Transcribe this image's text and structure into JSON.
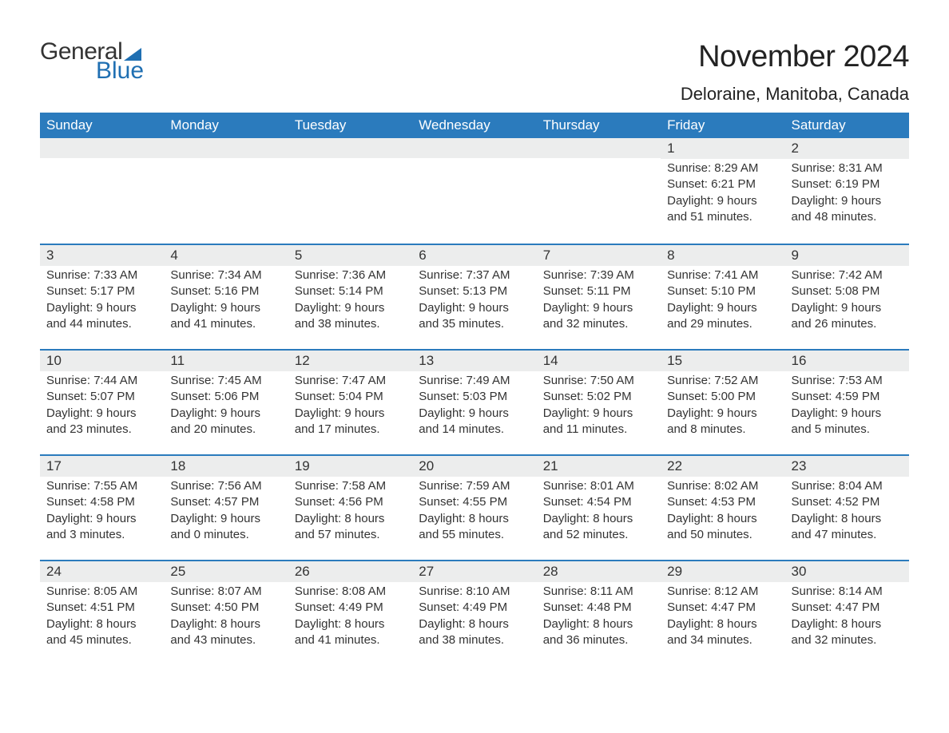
{
  "logo": {
    "word1": "General",
    "word2": "Blue"
  },
  "title": "November 2024",
  "location": "Deloraine, Manitoba, Canada",
  "colors": {
    "header_bg": "#2b7bbd",
    "header_text": "#ffffff",
    "daynum_bg": "#eceded",
    "week_border": "#2b7bbd",
    "logo_blue": "#1f6fb2",
    "text": "#333333",
    "background": "#ffffff"
  },
  "day_names": [
    "Sunday",
    "Monday",
    "Tuesday",
    "Wednesday",
    "Thursday",
    "Friday",
    "Saturday"
  ],
  "weeks": [
    [
      null,
      null,
      null,
      null,
      null,
      {
        "n": "1",
        "sunrise": "8:29 AM",
        "sunset": "6:21 PM",
        "daylight": "9 hours and 51 minutes."
      },
      {
        "n": "2",
        "sunrise": "8:31 AM",
        "sunset": "6:19 PM",
        "daylight": "9 hours and 48 minutes."
      }
    ],
    [
      {
        "n": "3",
        "sunrise": "7:33 AM",
        "sunset": "5:17 PM",
        "daylight": "9 hours and 44 minutes."
      },
      {
        "n": "4",
        "sunrise": "7:34 AM",
        "sunset": "5:16 PM",
        "daylight": "9 hours and 41 minutes."
      },
      {
        "n": "5",
        "sunrise": "7:36 AM",
        "sunset": "5:14 PM",
        "daylight": "9 hours and 38 minutes."
      },
      {
        "n": "6",
        "sunrise": "7:37 AM",
        "sunset": "5:13 PM",
        "daylight": "9 hours and 35 minutes."
      },
      {
        "n": "7",
        "sunrise": "7:39 AM",
        "sunset": "5:11 PM",
        "daylight": "9 hours and 32 minutes."
      },
      {
        "n": "8",
        "sunrise": "7:41 AM",
        "sunset": "5:10 PM",
        "daylight": "9 hours and 29 minutes."
      },
      {
        "n": "9",
        "sunrise": "7:42 AM",
        "sunset": "5:08 PM",
        "daylight": "9 hours and 26 minutes."
      }
    ],
    [
      {
        "n": "10",
        "sunrise": "7:44 AM",
        "sunset": "5:07 PM",
        "daylight": "9 hours and 23 minutes."
      },
      {
        "n": "11",
        "sunrise": "7:45 AM",
        "sunset": "5:06 PM",
        "daylight": "9 hours and 20 minutes."
      },
      {
        "n": "12",
        "sunrise": "7:47 AM",
        "sunset": "5:04 PM",
        "daylight": "9 hours and 17 minutes."
      },
      {
        "n": "13",
        "sunrise": "7:49 AM",
        "sunset": "5:03 PM",
        "daylight": "9 hours and 14 minutes."
      },
      {
        "n": "14",
        "sunrise": "7:50 AM",
        "sunset": "5:02 PM",
        "daylight": "9 hours and 11 minutes."
      },
      {
        "n": "15",
        "sunrise": "7:52 AM",
        "sunset": "5:00 PM",
        "daylight": "9 hours and 8 minutes."
      },
      {
        "n": "16",
        "sunrise": "7:53 AM",
        "sunset": "4:59 PM",
        "daylight": "9 hours and 5 minutes."
      }
    ],
    [
      {
        "n": "17",
        "sunrise": "7:55 AM",
        "sunset": "4:58 PM",
        "daylight": "9 hours and 3 minutes."
      },
      {
        "n": "18",
        "sunrise": "7:56 AM",
        "sunset": "4:57 PM",
        "daylight": "9 hours and 0 minutes."
      },
      {
        "n": "19",
        "sunrise": "7:58 AM",
        "sunset": "4:56 PM",
        "daylight": "8 hours and 57 minutes."
      },
      {
        "n": "20",
        "sunrise": "7:59 AM",
        "sunset": "4:55 PM",
        "daylight": "8 hours and 55 minutes."
      },
      {
        "n": "21",
        "sunrise": "8:01 AM",
        "sunset": "4:54 PM",
        "daylight": "8 hours and 52 minutes."
      },
      {
        "n": "22",
        "sunrise": "8:02 AM",
        "sunset": "4:53 PM",
        "daylight": "8 hours and 50 minutes."
      },
      {
        "n": "23",
        "sunrise": "8:04 AM",
        "sunset": "4:52 PM",
        "daylight": "8 hours and 47 minutes."
      }
    ],
    [
      {
        "n": "24",
        "sunrise": "8:05 AM",
        "sunset": "4:51 PM",
        "daylight": "8 hours and 45 minutes."
      },
      {
        "n": "25",
        "sunrise": "8:07 AM",
        "sunset": "4:50 PM",
        "daylight": "8 hours and 43 minutes."
      },
      {
        "n": "26",
        "sunrise": "8:08 AM",
        "sunset": "4:49 PM",
        "daylight": "8 hours and 41 minutes."
      },
      {
        "n": "27",
        "sunrise": "8:10 AM",
        "sunset": "4:49 PM",
        "daylight": "8 hours and 38 minutes."
      },
      {
        "n": "28",
        "sunrise": "8:11 AM",
        "sunset": "4:48 PM",
        "daylight": "8 hours and 36 minutes."
      },
      {
        "n": "29",
        "sunrise": "8:12 AM",
        "sunset": "4:47 PM",
        "daylight": "8 hours and 34 minutes."
      },
      {
        "n": "30",
        "sunrise": "8:14 AM",
        "sunset": "4:47 PM",
        "daylight": "8 hours and 32 minutes."
      }
    ]
  ],
  "labels": {
    "sunrise": "Sunrise:",
    "sunset": "Sunset:",
    "daylight": "Daylight:"
  }
}
